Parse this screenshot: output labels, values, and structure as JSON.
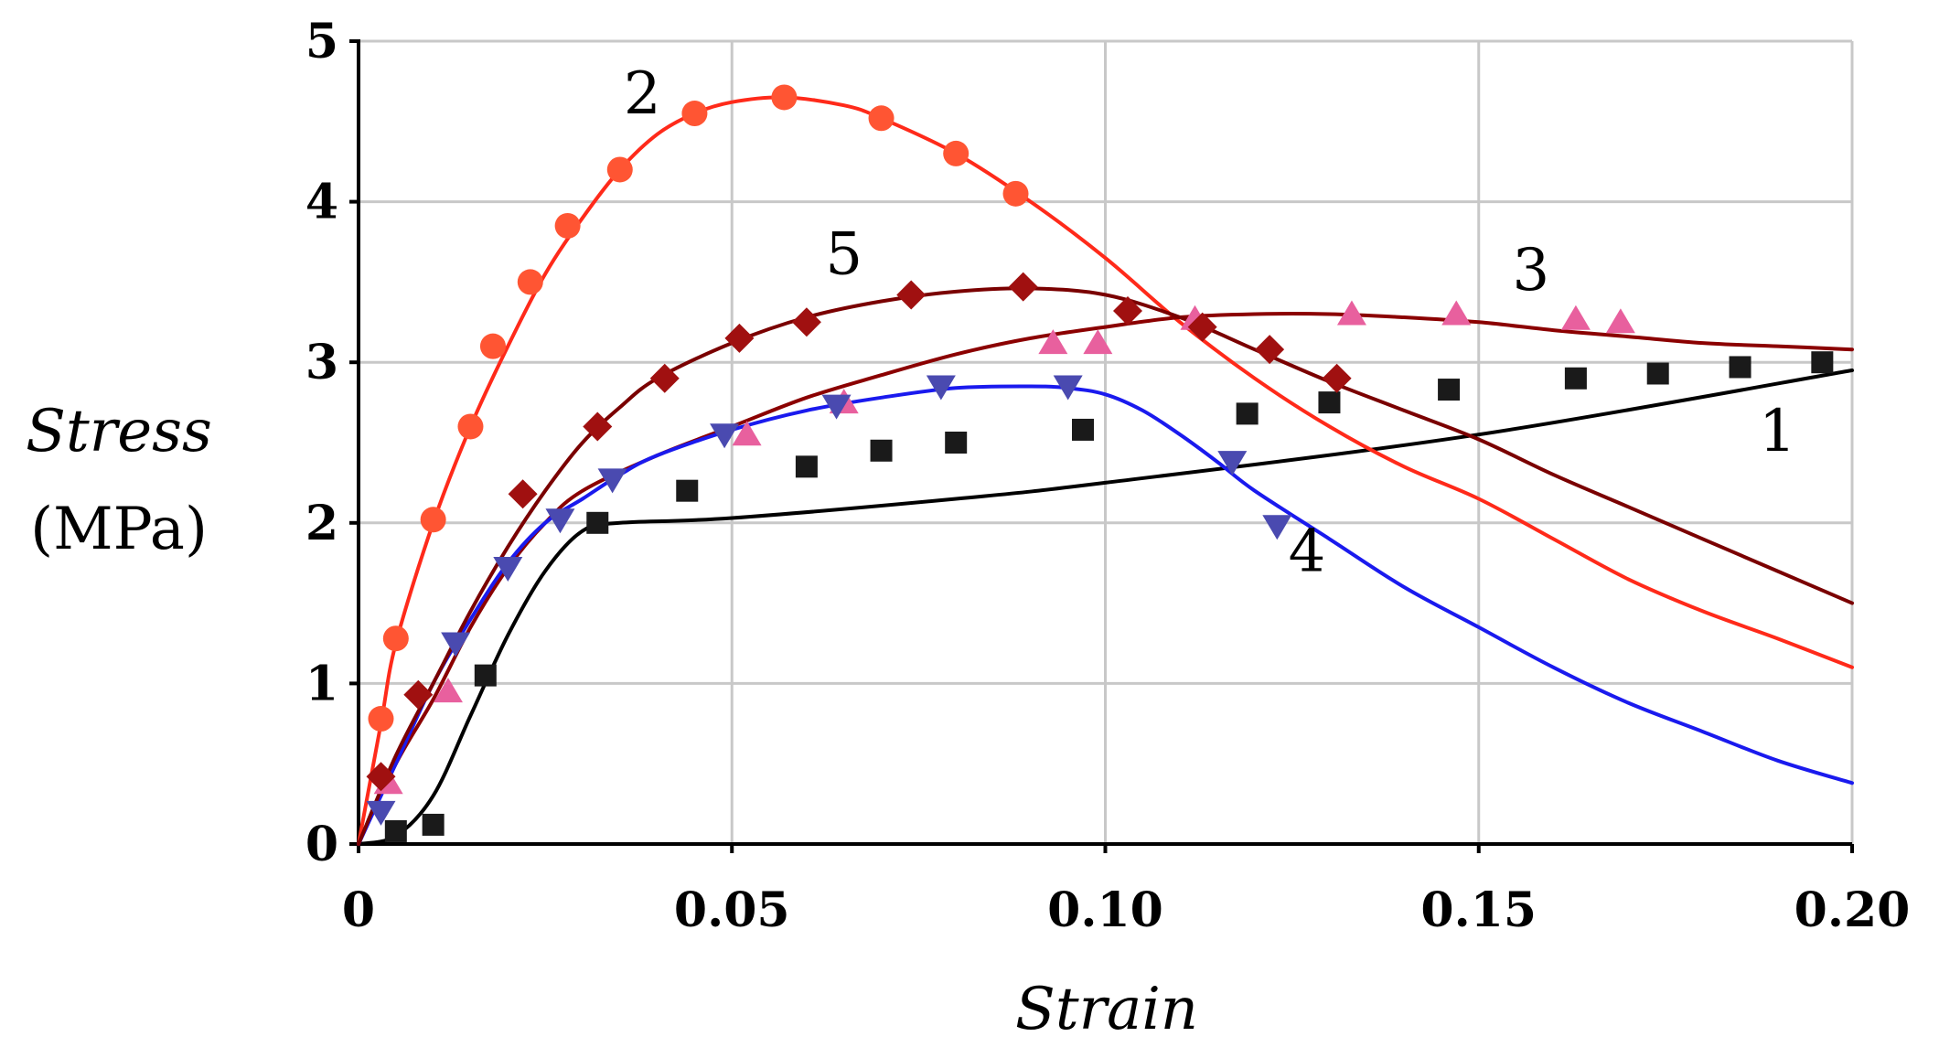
{
  "chart_data": {
    "type": "line",
    "title": "",
    "xlabel": "Strain",
    "ylabel": "Stress",
    "ylabel_unit": "(MPa)",
    "xlim": [
      0,
      0.2
    ],
    "ylim": [
      0,
      5
    ],
    "grid": true,
    "x_ticks": [
      0,
      0.05,
      0.1,
      0.15,
      0.2
    ],
    "x_tick_labels": [
      "0",
      "0.05",
      "0.10",
      "0.15",
      "0.20"
    ],
    "y_ticks": [
      0,
      1,
      2,
      3,
      4,
      5
    ],
    "y_tick_labels": [
      "0",
      "1",
      "2",
      "3",
      "4",
      "5"
    ],
    "series": [
      {
        "name": "1",
        "label": "1",
        "color": "#000000",
        "marker": "square",
        "marker_color": "#1a1a1a",
        "line": [
          [
            0,
            0
          ],
          [
            0.005,
            0.05
          ],
          [
            0.01,
            0.3
          ],
          [
            0.015,
            0.8
          ],
          [
            0.02,
            1.3
          ],
          [
            0.025,
            1.7
          ],
          [
            0.03,
            1.95
          ],
          [
            0.035,
            2.0
          ],
          [
            0.05,
            2.03
          ],
          [
            0.08,
            2.15
          ],
          [
            0.1,
            2.25
          ],
          [
            0.15,
            2.55
          ],
          [
            0.2,
            2.95
          ]
        ],
        "points": [
          [
            0.005,
            0.08
          ],
          [
            0.01,
            0.12
          ],
          [
            0.017,
            1.05
          ],
          [
            0.032,
            2.0
          ],
          [
            0.044,
            2.2
          ],
          [
            0.06,
            2.35
          ],
          [
            0.07,
            2.45
          ],
          [
            0.08,
            2.5
          ],
          [
            0.097,
            2.58
          ],
          [
            0.119,
            2.68
          ],
          [
            0.13,
            2.75
          ],
          [
            0.146,
            2.83
          ],
          [
            0.163,
            2.9
          ],
          [
            0.174,
            2.93
          ],
          [
            0.185,
            2.97
          ],
          [
            0.196,
            3.0
          ]
        ]
      },
      {
        "name": "2",
        "label": "2",
        "color": "#ff2a1a",
        "marker": "circle",
        "marker_color": "#ff5533",
        "line": [
          [
            0,
            0
          ],
          [
            0.003,
            0.75
          ],
          [
            0.005,
            1.25
          ],
          [
            0.01,
            2.0
          ],
          [
            0.015,
            2.6
          ],
          [
            0.02,
            3.1
          ],
          [
            0.025,
            3.55
          ],
          [
            0.03,
            3.9
          ],
          [
            0.035,
            4.2
          ],
          [
            0.04,
            4.42
          ],
          [
            0.045,
            4.55
          ],
          [
            0.05,
            4.62
          ],
          [
            0.057,
            4.65
          ],
          [
            0.065,
            4.6
          ],
          [
            0.07,
            4.52
          ],
          [
            0.08,
            4.3
          ],
          [
            0.09,
            4.0
          ],
          [
            0.1,
            3.65
          ],
          [
            0.11,
            3.25
          ],
          [
            0.12,
            2.9
          ],
          [
            0.13,
            2.6
          ],
          [
            0.14,
            2.35
          ],
          [
            0.15,
            2.15
          ],
          [
            0.16,
            1.9
          ],
          [
            0.17,
            1.65
          ],
          [
            0.18,
            1.45
          ],
          [
            0.19,
            1.28
          ],
          [
            0.2,
            1.1
          ]
        ],
        "points": [
          [
            0.003,
            0.78
          ],
          [
            0.005,
            1.28
          ],
          [
            0.01,
            2.02
          ],
          [
            0.015,
            2.6
          ],
          [
            0.018,
            3.1
          ],
          [
            0.023,
            3.5
          ],
          [
            0.028,
            3.85
          ],
          [
            0.035,
            4.2
          ],
          [
            0.045,
            4.55
          ],
          [
            0.057,
            4.65
          ],
          [
            0.07,
            4.52
          ],
          [
            0.08,
            4.3
          ],
          [
            0.088,
            4.05
          ]
        ]
      },
      {
        "name": "3",
        "label": "3",
        "color": "#8b0000",
        "marker": "triangle-up",
        "marker_color": "#e8609e",
        "line": [
          [
            0,
            0
          ],
          [
            0.005,
            0.5
          ],
          [
            0.01,
            0.9
          ],
          [
            0.015,
            1.35
          ],
          [
            0.02,
            1.72
          ],
          [
            0.025,
            2.0
          ],
          [
            0.03,
            2.2
          ],
          [
            0.04,
            2.42
          ],
          [
            0.05,
            2.6
          ],
          [
            0.06,
            2.78
          ],
          [
            0.07,
            2.92
          ],
          [
            0.08,
            3.05
          ],
          [
            0.09,
            3.15
          ],
          [
            0.1,
            3.22
          ],
          [
            0.11,
            3.28
          ],
          [
            0.12,
            3.3
          ],
          [
            0.13,
            3.3
          ],
          [
            0.14,
            3.28
          ],
          [
            0.15,
            3.25
          ],
          [
            0.16,
            3.2
          ],
          [
            0.17,
            3.16
          ],
          [
            0.18,
            3.12
          ],
          [
            0.19,
            3.1
          ],
          [
            0.2,
            3.08
          ]
        ],
        "points": [
          [
            0.004,
            0.38
          ],
          [
            0.012,
            0.95
          ],
          [
            0.052,
            2.55
          ],
          [
            0.065,
            2.75
          ],
          [
            0.093,
            3.12
          ],
          [
            0.099,
            3.12
          ],
          [
            0.112,
            3.27
          ],
          [
            0.133,
            3.3
          ],
          [
            0.147,
            3.3
          ],
          [
            0.163,
            3.27
          ],
          [
            0.169,
            3.25
          ]
        ]
      },
      {
        "name": "4",
        "label": "4",
        "color": "#1a1aee",
        "marker": "triangle-down",
        "marker_color": "#4a4ab0",
        "line": [
          [
            0,
            0
          ],
          [
            0.005,
            0.5
          ],
          [
            0.01,
            1.0
          ],
          [
            0.015,
            1.4
          ],
          [
            0.02,
            1.75
          ],
          [
            0.025,
            2.0
          ],
          [
            0.03,
            2.15
          ],
          [
            0.035,
            2.3
          ],
          [
            0.04,
            2.42
          ],
          [
            0.05,
            2.58
          ],
          [
            0.06,
            2.7
          ],
          [
            0.07,
            2.78
          ],
          [
            0.08,
            2.84
          ],
          [
            0.09,
            2.85
          ],
          [
            0.095,
            2.84
          ],
          [
            0.1,
            2.8
          ],
          [
            0.105,
            2.7
          ],
          [
            0.11,
            2.55
          ],
          [
            0.115,
            2.38
          ],
          [
            0.12,
            2.2
          ],
          [
            0.13,
            1.9
          ],
          [
            0.14,
            1.6
          ],
          [
            0.15,
            1.35
          ],
          [
            0.16,
            1.1
          ],
          [
            0.17,
            0.88
          ],
          [
            0.18,
            0.7
          ],
          [
            0.19,
            0.52
          ],
          [
            0.2,
            0.38
          ]
        ],
        "points": [
          [
            0.003,
            0.2
          ],
          [
            0.013,
            1.25
          ],
          [
            0.02,
            1.72
          ],
          [
            0.027,
            2.02
          ],
          [
            0.034,
            2.27
          ],
          [
            0.049,
            2.55
          ],
          [
            0.064,
            2.73
          ],
          [
            0.078,
            2.85
          ],
          [
            0.095,
            2.85
          ],
          [
            0.117,
            2.38
          ],
          [
            0.123,
            1.98
          ]
        ]
      },
      {
        "name": "5",
        "label": "5",
        "color": "#7a0000",
        "marker": "diamond",
        "marker_color": "#a01010",
        "line": [
          [
            0,
            0
          ],
          [
            0.005,
            0.55
          ],
          [
            0.01,
            1.0
          ],
          [
            0.015,
            1.45
          ],
          [
            0.02,
            1.85
          ],
          [
            0.025,
            2.2
          ],
          [
            0.03,
            2.5
          ],
          [
            0.035,
            2.72
          ],
          [
            0.04,
            2.9
          ],
          [
            0.05,
            3.12
          ],
          [
            0.06,
            3.28
          ],
          [
            0.07,
            3.38
          ],
          [
            0.08,
            3.44
          ],
          [
            0.09,
            3.46
          ],
          [
            0.1,
            3.42
          ],
          [
            0.11,
            3.28
          ],
          [
            0.12,
            3.08
          ],
          [
            0.13,
            2.88
          ],
          [
            0.14,
            2.7
          ],
          [
            0.15,
            2.52
          ],
          [
            0.16,
            2.3
          ],
          [
            0.17,
            2.1
          ],
          [
            0.18,
            1.9
          ],
          [
            0.19,
            1.7
          ],
          [
            0.2,
            1.5
          ]
        ],
        "points": [
          [
            0.003,
            0.42
          ],
          [
            0.008,
            0.93
          ],
          [
            0.022,
            2.18
          ],
          [
            0.032,
            2.6
          ],
          [
            0.041,
            2.9
          ],
          [
            0.051,
            3.15
          ],
          [
            0.06,
            3.25
          ],
          [
            0.074,
            3.42
          ],
          [
            0.089,
            3.47
          ],
          [
            0.103,
            3.32
          ],
          [
            0.113,
            3.22
          ],
          [
            0.122,
            3.08
          ],
          [
            0.131,
            2.9
          ]
        ]
      }
    ],
    "curve_labels": [
      {
        "text": "2",
        "x": 0.038,
        "y": 4.55
      },
      {
        "text": "5",
        "x": 0.065,
        "y": 3.55
      },
      {
        "text": "3",
        "x": 0.157,
        "y": 3.45
      },
      {
        "text": "1",
        "x": 0.19,
        "y": 2.45
      },
      {
        "text": "4",
        "x": 0.127,
        "y": 1.7
      }
    ]
  }
}
